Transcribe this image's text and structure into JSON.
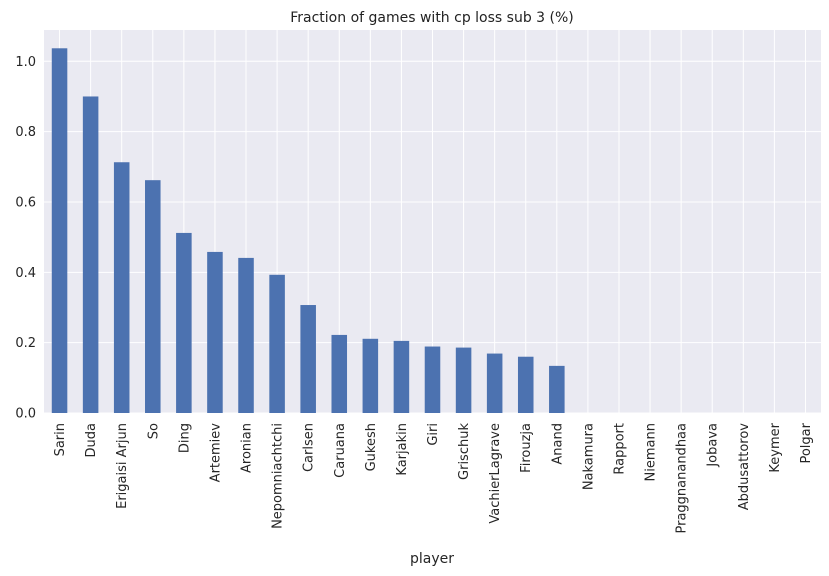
{
  "chart_data": {
    "type": "bar",
    "title": "Fraction of games with cp loss sub 3 (%)",
    "xlabel": "player",
    "ylabel": "",
    "categories": [
      "Sarin",
      "Duda",
      "Erigaisi Arjun",
      "So",
      "Ding",
      "Artemiev",
      "Aronian",
      "Nepomniachtchi",
      "Carlsen",
      "Caruana",
      "Gukesh",
      "Karjakin",
      "Giri",
      "Grischuk",
      "VachierLagrave",
      "Firouzja",
      "Anand",
      "Nakamura",
      "Rapport",
      "Niemann",
      "Praggnanandhaa",
      "Jobava",
      "Abdusattorov",
      "Keymer",
      "Polgar"
    ],
    "values": [
      1.037,
      0.9,
      0.713,
      0.662,
      0.512,
      0.458,
      0.441,
      0.393,
      0.307,
      0.222,
      0.211,
      0.205,
      0.189,
      0.186,
      0.169,
      0.16,
      0.134,
      0,
      0,
      0,
      0,
      0,
      0,
      0,
      0
    ],
    "yticks": [
      "0.0",
      "0.2",
      "0.4",
      "0.6",
      "0.8",
      "1.0"
    ],
    "ylim": [
      0,
      1.089
    ],
    "grid": true,
    "colors": {
      "bar": "#4c72b0",
      "plot_background": "#eaeaf2",
      "grid": "#ffffff"
    }
  }
}
